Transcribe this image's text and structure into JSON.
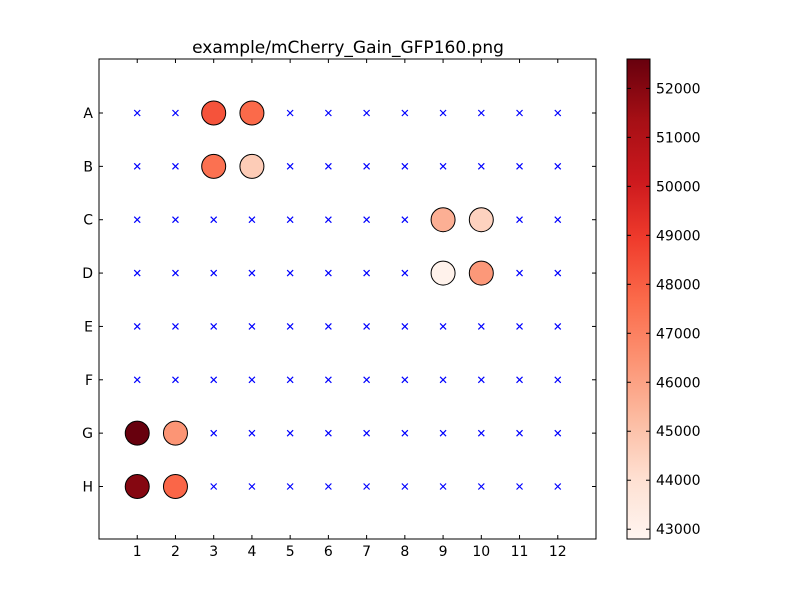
{
  "chart_data": {
    "type": "scatter",
    "title": "example/mCherry_Gain_GFP160.png",
    "xlabel": "",
    "ylabel": "",
    "columns": [
      "1",
      "2",
      "3",
      "4",
      "5",
      "6",
      "7",
      "8",
      "9",
      "10",
      "11",
      "12"
    ],
    "rows": [
      "A",
      "B",
      "C",
      "D",
      "E",
      "F",
      "G",
      "H"
    ],
    "xlim": [
      0,
      13
    ],
    "empty_marker": "x",
    "empty_marker_color": "#0000ff",
    "filled_wells": [
      {
        "row": "A",
        "col": 3,
        "value": 48300
      },
      {
        "row": "A",
        "col": 4,
        "value": 47700
      },
      {
        "row": "B",
        "col": 3,
        "value": 47500
      },
      {
        "row": "B",
        "col": 4,
        "value": 44700
      },
      {
        "row": "C",
        "col": 9,
        "value": 45600
      },
      {
        "row": "C",
        "col": 10,
        "value": 44500
      },
      {
        "row": "D",
        "col": 9,
        "value": 43000
      },
      {
        "row": "D",
        "col": 10,
        "value": 46300
      },
      {
        "row": "G",
        "col": 1,
        "value": 52600
      },
      {
        "row": "G",
        "col": 2,
        "value": 46400
      },
      {
        "row": "H",
        "col": 1,
        "value": 52000
      },
      {
        "row": "H",
        "col": 2,
        "value": 47800
      }
    ],
    "colorbar": {
      "colormap": "Reds",
      "min": 42800,
      "max": 52600,
      "ticks": [
        43000,
        44000,
        45000,
        46000,
        47000,
        48000,
        49000,
        50000,
        51000,
        52000
      ]
    },
    "grid": false
  }
}
